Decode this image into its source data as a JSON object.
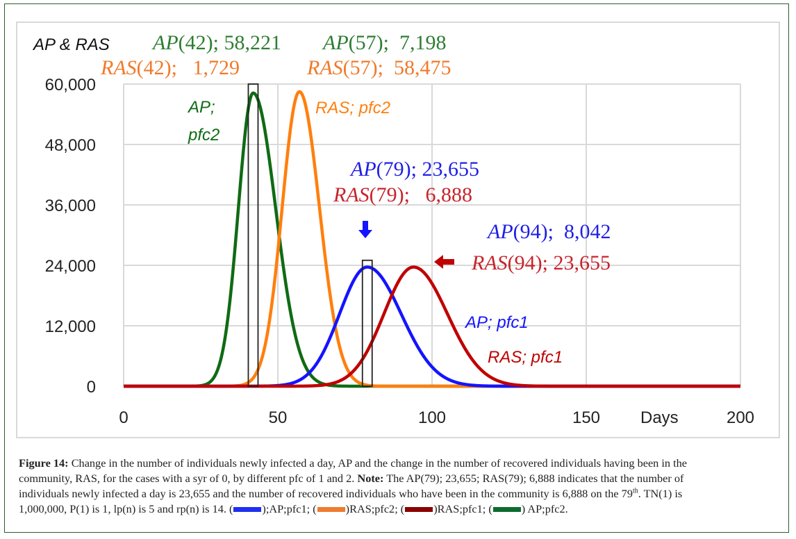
{
  "chart_data": {
    "type": "line",
    "y_axis_title": "AP & RAS",
    "x_axis_title": "Days",
    "xlim": [
      0,
      200
    ],
    "ylim": [
      0,
      60000
    ],
    "x_ticks": [
      "0",
      "50",
      "100",
      "150",
      "200"
    ],
    "x_tick_values": [
      0,
      50,
      100,
      150,
      200
    ],
    "y_ticks": [
      "0",
      "12,000",
      "24,000",
      "36,000",
      "48,000",
      "60,000"
    ],
    "y_tick_values": [
      0,
      12000,
      24000,
      36000,
      48000,
      60000
    ],
    "grid": true,
    "series": [
      {
        "name": "AP; pfc2",
        "label_line1": "AP;",
        "label_line2": "pfc2",
        "color": "#0f6b14",
        "peak_day": 42,
        "peak_value": 58221,
        "sigma_left": 4.8,
        "sigma_right": 7.3
      },
      {
        "name": "RAS; pfc2",
        "label": "RAS; pfc2",
        "color": "#ff7f0e",
        "peak_day": 57,
        "peak_value": 58475,
        "sigma_left": 5.6,
        "sigma_right": 6.5
      },
      {
        "name": "AP; pfc1",
        "label": "AP; pfc1",
        "color": "#1414ff",
        "peak_day": 79,
        "peak_value": 23655,
        "sigma_left": 9.0,
        "sigma_right": 11.0
      },
      {
        "name": "RAS; pfc1",
        "label": "RAS; pfc1",
        "color": "#c00000",
        "peak_day": 94,
        "peak_value": 23655,
        "sigma_left": 9.6,
        "sigma_right": 11.0
      }
    ],
    "highlight_boxes": [
      {
        "day": 42,
        "top_value": 60000
      },
      {
        "day": 79,
        "top_value": 25000
      }
    ],
    "annotations": {
      "ap42": {
        "name": "AP",
        "arg": "(42); 58,221",
        "color": "#2e7d32"
      },
      "ap57": {
        "name": "AP",
        "arg": "(57);  7,198",
        "color": "#2e7d32"
      },
      "ras42": {
        "name": "RAS",
        "arg": "(42);   1,729",
        "color": "#f07a2a"
      },
      "ras57": {
        "name": "RAS",
        "arg": "(57);  58,475",
        "color": "#f07a2a"
      },
      "ap79": {
        "name": "AP",
        "arg": "(79); 23,655",
        "color": "#1e1ee6"
      },
      "ras79": {
        "name": "RAS",
        "arg": "(79);   6,888",
        "color": "#c8232b"
      },
      "ap94": {
        "name": "AP",
        "arg": "(94);  8,042",
        "color": "#1e1ee6"
      },
      "ras94": {
        "name": "RAS",
        "arg": "(94); 23,655",
        "color": "#c8232b"
      }
    },
    "arrows": {
      "down_color": "#1414ff",
      "left_color": "#c00000"
    }
  },
  "caption": {
    "figure_label": "Figure 14:",
    "line1": "Change in the number of individuals newly infected a day, AP and the change in the number of recovered individuals having been in the",
    "line2a": "community, RAS, for the cases with a syr of 0, by different pfc of 1 and 2.",
    "note_label": "Note:",
    "line2b": "The AP(79); 23,655; RAS(79); 6,888 indicates that the number of",
    "line3a": "individuals newly infected a day is 23,655 and the number of recovered individuals who have been in the community is 6,888 on the 79",
    "line3_sup": "th",
    "line3b": ". TN(1) is",
    "line4a": "1,000,000, P(1) is 1, lp(n) is 5 and rp(n) is 14. (",
    "legend": [
      {
        "text_after": ");AP;pfc1; (",
        "color": "#1f2ff0"
      },
      {
        "text_after": ")RAS;pfc2; (",
        "color": "#ef7b30"
      },
      {
        "text_after": ")RAS;pfc1; (",
        "color": "#8b0000"
      },
      {
        "text_after": ") AP;pfc2.",
        "color": "#0d6b30"
      }
    ]
  }
}
